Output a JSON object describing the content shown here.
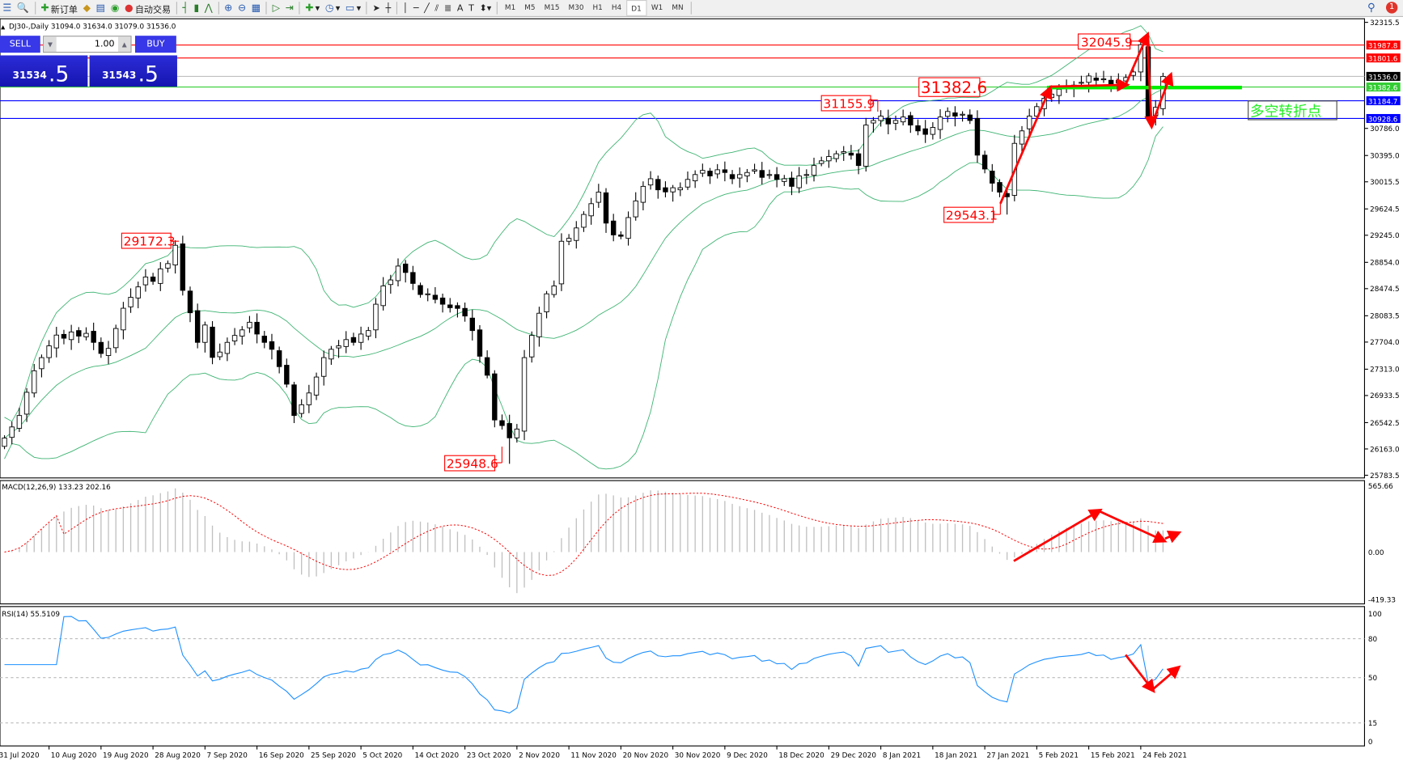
{
  "toolbar": {
    "new_order": "新订单",
    "auto_trading": "自动交易",
    "icons": [
      "list-icon",
      "print-preview-icon",
      "new-order-icon",
      "gold-icon",
      "market-watch-icon",
      "signal-icon",
      "auto-trading-icon",
      "bar-chart-icon",
      "candlestick-icon",
      "line-chart-icon",
      "zoom-in-icon",
      "zoom-out-icon",
      "tile-icon",
      "autoscroll-icon",
      "chart-shift-icon",
      "indicators-icon",
      "periods-icon",
      "templates-icon",
      "cursor-icon",
      "crosshair-icon",
      "vertical-line-icon",
      "horizontal-line-icon",
      "trendline-icon",
      "fibonacci-icon",
      "fibo-fan-icon",
      "text-icon",
      "text-label-icon",
      "arrows-icon",
      "search-icon",
      "notification-icon"
    ],
    "text_tool": "A",
    "label_tool": "T",
    "timeframes": [
      "M1",
      "M5",
      "M15",
      "M30",
      "H1",
      "H4",
      "D1",
      "W1",
      "MN"
    ],
    "active_timeframe": "D1",
    "notification_count": "1"
  },
  "chart": {
    "title": "DJ30-,Daily  31094.0 31634.0 31079.0 31536.0",
    "trade_panel": {
      "sell": "SELL",
      "buy": "BUY",
      "lot": "1.00",
      "bid_main": "31534",
      "bid_pips": ".5",
      "ask_main": "31543",
      "ask_pips": ".5"
    },
    "price_axis": [
      "32315.5",
      "30786.0",
      "30395.0",
      "30015.5",
      "29624.5",
      "29245.0",
      "28854.0",
      "28474.5",
      "28083.5",
      "27704.0",
      "27313.0",
      "26933.5",
      "26542.5",
      "26163.0",
      "25783.5"
    ],
    "price_range": [
      25783.5,
      32315.5
    ],
    "hlines": [
      {
        "label": "31987.8",
        "price": 31987.8,
        "color": "#ff0000"
      },
      {
        "label": "31801.6",
        "price": 31801.6,
        "color": "#ff0000"
      },
      {
        "label": "31536.0",
        "price": 31536.0,
        "color": "#000000",
        "line": "#c0c0c0"
      },
      {
        "label": "31382.6",
        "price": 31382.6,
        "color": "#32cd32"
      },
      {
        "label": "31184.7",
        "price": 31184.7,
        "color": "#0000ff"
      },
      {
        "label": "30928.6",
        "price": 30928.6,
        "color": "#0000ff"
      }
    ],
    "annotations": [
      "32045.9",
      "31382.6",
      "31155.9",
      "29543.1",
      "29172.3",
      "25948.6"
    ],
    "text_box": "多空转折点",
    "colors": {
      "bands": "#3cb371",
      "arrows": "#ff0000",
      "signal": "#ff0000",
      "rsi": "#1e90ff",
      "histogram": "#c0c0c0",
      "bull": "#ffffff",
      "bear": "#000000"
    },
    "macd": {
      "label": "MACD(12,26,9) 133.23 202.16",
      "axis": [
        "565.66",
        "0.00",
        "-419.33"
      ],
      "range": [
        -419.33,
        565.66
      ]
    },
    "rsi": {
      "label": "RSI(14) 55.5109",
      "axis": [
        "100",
        "80",
        "50",
        "15",
        "0"
      ],
      "levels": [
        80,
        50,
        15
      ]
    },
    "dates": [
      "31 Jul 2020",
      "10 Aug 2020",
      "19 Aug 2020",
      "28 Aug 2020",
      "7 Sep 2020",
      "16 Sep 2020",
      "25 Sep 2020",
      "5 Oct 2020",
      "14 Oct 2020",
      "23 Oct 2020",
      "2 Nov 2020",
      "11 Nov 2020",
      "20 Nov 2020",
      "30 Nov 2020",
      "9 Dec 2020",
      "18 Dec 2020",
      "29 Dec 2020",
      "8 Jan 2021",
      "18 Jan 2021",
      "27 Jan 2021",
      "5 Feb 2021",
      "15 Feb 2021",
      "24 Feb 2021"
    ]
  },
  "chart_data": {
    "type": "candlestick",
    "indicators": [
      "Bollinger Bands",
      "MACD(12,26,9)",
      "RSI(14)"
    ],
    "closes": [
      26320,
      26480,
      26645,
      26980,
      27290,
      27480,
      27650,
      27805,
      27760,
      27850,
      27790,
      27830,
      27700,
      27540,
      27613,
      27900,
      28192,
      28350,
      28500,
      28643,
      28580,
      28760,
      28836,
      29100,
      28450,
      28127,
      27700,
      27950,
      27483,
      27560,
      27700,
      27800,
      27880,
      27990,
      27820,
      27700,
      27600,
      27350,
      27097,
      26645,
      26800,
      26970,
      27200,
      27480,
      27600,
      27650,
      27740,
      27700,
      27820,
      27870,
      28250,
      28514,
      28600,
      28800,
      28708,
      28550,
      28390,
      28400,
      28320,
      28250,
      28200,
      28190,
      28080,
      27870,
      27500,
      27226,
      26581,
      26500,
      26323,
      26450,
      27480,
      27800,
      28120,
      28400,
      28514,
      29158,
      29200,
      29350,
      29545,
      29700,
      29867,
      29420,
      29250,
      29230,
      29500,
      29740,
      29950,
      30060,
      29900,
      29870,
      29930,
      29930,
      30050,
      30120,
      30180,
      30100,
      30189,
      30150,
      30060,
      30120,
      30150,
      30189,
      30080,
      30120,
      30050,
      30060,
      29950,
      30100,
      30120,
      30250,
      30318,
      30380,
      30420,
      30450,
      30400,
      30250,
      30834,
      30900,
      30963,
      30850,
      30900,
      30950,
      30834,
      30750,
      30700,
      30800,
      30950,
      31030,
      30963,
      30990,
      30900,
      30400,
      30200,
      29996,
      29867,
      29800,
      30570,
      30750,
      30963,
      31100,
      31220,
      31280,
      31350,
      31380,
      31410,
      31450,
      31542,
      31480,
      31500,
      31420,
      31480,
      31520,
      31600,
      31993,
      30963,
      31090,
      31536
    ]
  }
}
